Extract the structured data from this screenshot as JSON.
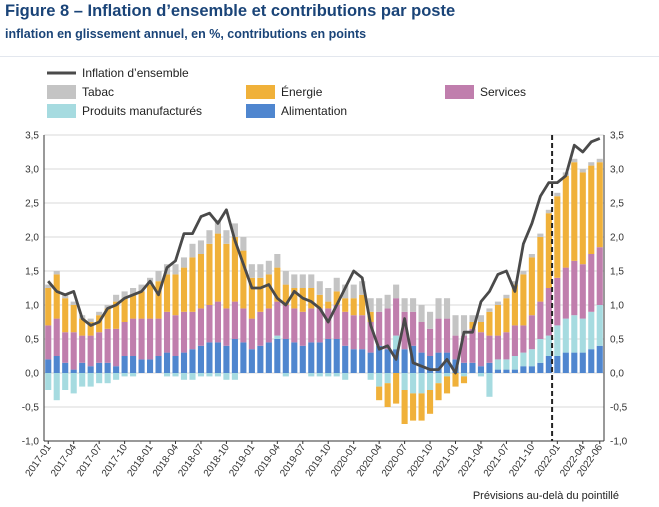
{
  "title": "Figure 8 – Inflation d’ensemble et contributions par poste",
  "subtitle": "inflation en glissement annuel, en %, contributions en points",
  "note": "Prévisions au-delà du pointillé",
  "colors": {
    "tabac": "#c4c4c4",
    "energie": "#f0b13a",
    "services": "#c07ead",
    "manufactures": "#a6dbe0",
    "alimentation": "#4f86cf",
    "ensemble": "#4a4a4a",
    "grid": "#d9d9d9",
    "axis": "#333333"
  },
  "chart_data": {
    "type": "bar",
    "stacked": true,
    "x_start": "2017-01",
    "x_end": "2022-06",
    "forecast_start": "2022-01",
    "ylim": [
      -1.0,
      3.5
    ],
    "yticks": [
      "-1,0",
      "-0,5",
      "0,0",
      "0,5",
      "1,0",
      "1,5",
      "2,0",
      "2,5",
      "3,0",
      "3,5"
    ],
    "xtick_labels": [
      "2017-01",
      "2017-04",
      "2017-07",
      "2017-10",
      "2018-01",
      "2018-04",
      "2018-07",
      "2018-10",
      "2019-01",
      "2019-04",
      "2019-07",
      "2019-10",
      "2020-01",
      "2020-04",
      "2020-07",
      "2020-10",
      "2021-01",
      "2021-04",
      "2021-07",
      "2021-10",
      "2022-01",
      "2022-04",
      "2022-06"
    ],
    "grid": true,
    "legend": [
      {
        "key": "ensemble",
        "label": "Inflation d’ensemble",
        "kind": "line"
      },
      {
        "key": "tabac",
        "label": "Tabac",
        "kind": "bar"
      },
      {
        "key": "energie",
        "label": "Énergie",
        "kind": "bar"
      },
      {
        "key": "services",
        "label": "Services",
        "kind": "bar"
      },
      {
        "key": "manufactures",
        "label": "Produits manufacturés",
        "kind": "bar"
      },
      {
        "key": "alimentation",
        "label": "Alimentation",
        "kind": "bar"
      }
    ],
    "series": [
      {
        "key": "alimentation",
        "name": "Alimentation",
        "values": [
          0.2,
          0.25,
          0.15,
          0.05,
          0.15,
          0.1,
          0.15,
          0.15,
          0.1,
          0.25,
          0.25,
          0.2,
          0.2,
          0.25,
          0.3,
          0.25,
          0.3,
          0.35,
          0.4,
          0.45,
          0.45,
          0.4,
          0.5,
          0.45,
          0.35,
          0.4,
          0.45,
          0.5,
          0.5,
          0.45,
          0.4,
          0.45,
          0.45,
          0.5,
          0.5,
          0.4,
          0.35,
          0.35,
          0.3,
          0.4,
          0.35,
          0.35,
          0.35,
          0.4,
          0.3,
          0.25,
          0.3,
          0.3,
          0.2,
          0.15,
          0.15,
          0.1,
          0.15,
          0.05,
          0.05,
          0.05,
          0.1,
          0.1,
          0.15,
          0.25,
          0.25,
          0.3,
          0.3,
          0.3,
          0.35,
          0.4
        ]
      },
      {
        "key": "manufactures",
        "name": "Produits manufacturés",
        "values": [
          -0.25,
          -0.4,
          -0.25,
          -0.3,
          -0.2,
          -0.2,
          -0.15,
          -0.15,
          -0.1,
          -0.05,
          -0.05,
          0.0,
          0.0,
          0.0,
          -0.05,
          -0.05,
          -0.1,
          -0.1,
          -0.05,
          -0.05,
          -0.05,
          -0.1,
          -0.1,
          0.0,
          0.0,
          0.0,
          0.0,
          0.05,
          -0.05,
          0.0,
          0.0,
          -0.05,
          -0.05,
          -0.05,
          -0.05,
          -0.1,
          0.0,
          0.0,
          -0.1,
          -0.2,
          -0.15,
          0.2,
          -0.25,
          -0.3,
          -0.3,
          -0.25,
          -0.15,
          -0.05,
          0.0,
          -0.05,
          0.0,
          -0.05,
          -0.35,
          0.15,
          0.15,
          0.2,
          0.2,
          0.25,
          0.35,
          0.3,
          0.45,
          0.5,
          0.55,
          0.5,
          0.55,
          0.6
        ]
      },
      {
        "key": "services",
        "name": "Services",
        "values": [
          0.5,
          0.55,
          0.45,
          0.55,
          0.4,
          0.45,
          0.45,
          0.5,
          0.55,
          0.5,
          0.55,
          0.6,
          0.6,
          0.55,
          0.6,
          0.6,
          0.6,
          0.55,
          0.55,
          0.55,
          0.6,
          0.55,
          0.55,
          0.5,
          0.45,
          0.5,
          0.5,
          0.5,
          0.5,
          0.5,
          0.5,
          0.5,
          0.5,
          0.45,
          0.5,
          0.5,
          0.5,
          0.5,
          0.45,
          0.5,
          0.6,
          0.55,
          0.55,
          0.5,
          0.45,
          0.4,
          0.5,
          0.5,
          0.35,
          0.4,
          0.5,
          0.5,
          0.4,
          0.35,
          0.4,
          0.45,
          0.4,
          0.5,
          0.55,
          0.7,
          0.7,
          0.75,
          0.8,
          0.8,
          0.85,
          0.85
        ]
      },
      {
        "key": "energie",
        "name": "Énergie",
        "values": [
          0.55,
          0.65,
          0.5,
          0.4,
          0.25,
          0.2,
          0.25,
          0.3,
          0.4,
          0.35,
          0.35,
          0.4,
          0.5,
          0.55,
          0.55,
          0.6,
          0.65,
          0.8,
          0.8,
          0.9,
          1.0,
          0.95,
          0.95,
          0.85,
          0.6,
          0.5,
          0.5,
          0.5,
          0.3,
          0.3,
          0.35,
          0.3,
          0.2,
          0.1,
          0.2,
          0.2,
          0.25,
          0.3,
          0.15,
          -0.2,
          -0.35,
          -0.45,
          -0.5,
          -0.4,
          -0.4,
          -0.35,
          -0.25,
          -0.25,
          -0.2,
          -0.1,
          0.1,
          0.15,
          0.35,
          0.45,
          0.5,
          0.6,
          0.75,
          0.85,
          0.95,
          1.1,
          1.2,
          1.35,
          1.45,
          1.35,
          1.3,
          1.25
        ]
      },
      {
        "key": "tabac",
        "name": "Tabac",
        "values": [
          0.05,
          0.05,
          0.05,
          0.05,
          0.05,
          0.05,
          0.05,
          0.05,
          0.1,
          0.1,
          0.1,
          0.1,
          0.1,
          0.15,
          0.15,
          0.15,
          0.15,
          0.2,
          0.2,
          0.2,
          0.2,
          0.2,
          0.2,
          0.2,
          0.2,
          0.2,
          0.2,
          0.2,
          0.2,
          0.2,
          0.2,
          0.2,
          0.2,
          0.2,
          0.2,
          0.2,
          0.2,
          0.2,
          0.2,
          0.2,
          0.2,
          0.2,
          0.2,
          0.2,
          0.25,
          0.25,
          0.3,
          0.3,
          0.3,
          0.3,
          0.1,
          0.1,
          0.05,
          0.05,
          0.05,
          0.05,
          0.05,
          0.05,
          0.05,
          0.05,
          0.05,
          0.05,
          0.05,
          0.05,
          0.05,
          0.05
        ]
      },
      {
        "key": "ensemble",
        "name": "Inflation d’ensemble",
        "type": "line",
        "values": [
          1.35,
          1.2,
          1.15,
          1.2,
          0.8,
          0.7,
          0.75,
          0.95,
          1.0,
          1.1,
          1.15,
          1.2,
          1.35,
          1.15,
          1.55,
          1.65,
          2.05,
          2.05,
          2.3,
          2.35,
          2.2,
          2.4,
          1.95,
          1.6,
          1.25,
          1.25,
          1.3,
          1.1,
          1.0,
          1.2,
          1.1,
          1.05,
          0.95,
          0.75,
          1.0,
          1.25,
          1.5,
          1.4,
          0.7,
          0.35,
          0.4,
          0.2,
          0.8,
          0.15,
          0.1,
          0.05,
          0.05,
          0.2,
          0.0,
          0.6,
          0.6,
          1.05,
          1.2,
          1.45,
          1.5,
          1.2,
          1.9,
          2.2,
          2.6,
          2.8,
          2.8,
          2.9,
          3.35,
          3.25,
          3.4,
          3.45
        ]
      }
    ]
  }
}
